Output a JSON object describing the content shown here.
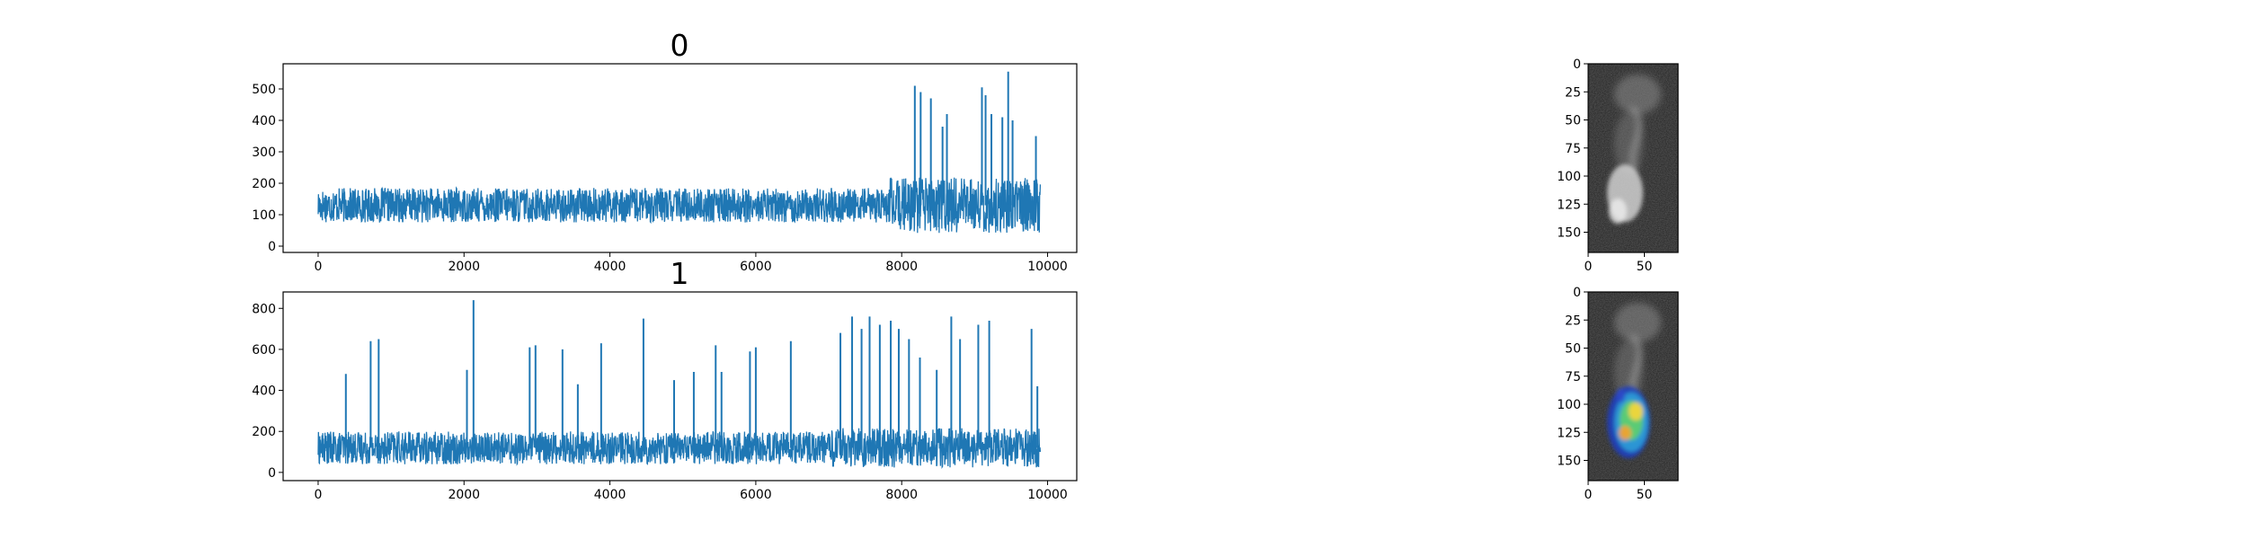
{
  "colors": {
    "line": "#1f77b4",
    "axes": "#000000",
    "background": "#ffffff"
  },
  "chart_data": [
    {
      "type": "line",
      "title": "0",
      "xlabel": "",
      "ylabel": "",
      "xlim": [
        -480,
        10400
      ],
      "ylim": [
        -20,
        580
      ],
      "xticks": [
        0,
        2000,
        4000,
        6000,
        8000,
        10000
      ],
      "yticks": [
        0,
        100,
        200,
        300,
        400,
        500
      ],
      "x_range": [
        0,
        9900
      ],
      "baseline": 130,
      "noise_amplitude": 55,
      "grid": false,
      "spikes": [
        {
          "x": 8180,
          "y": 510
        },
        {
          "x": 8260,
          "y": 490
        },
        {
          "x": 8400,
          "y": 470
        },
        {
          "x": 8560,
          "y": 380
        },
        {
          "x": 8620,
          "y": 420
        },
        {
          "x": 9100,
          "y": 505
        },
        {
          "x": 9150,
          "y": 480
        },
        {
          "x": 9230,
          "y": 420
        },
        {
          "x": 9380,
          "y": 410
        },
        {
          "x": 9460,
          "y": 555
        },
        {
          "x": 9520,
          "y": 400
        },
        {
          "x": 9840,
          "y": 350
        }
      ]
    },
    {
      "type": "line",
      "title": "1",
      "xlabel": "",
      "ylabel": "",
      "xlim": [
        -480,
        10400
      ],
      "ylim": [
        -40,
        880
      ],
      "xticks": [
        0,
        2000,
        4000,
        6000,
        8000,
        10000
      ],
      "yticks": [
        0,
        200,
        400,
        600,
        800
      ],
      "x_range": [
        0,
        9900
      ],
      "baseline": 120,
      "noise_amplitude": 80,
      "grid": false,
      "spikes": [
        {
          "x": 380,
          "y": 480
        },
        {
          "x": 720,
          "y": 640
        },
        {
          "x": 830,
          "y": 650
        },
        {
          "x": 2040,
          "y": 500
        },
        {
          "x": 2130,
          "y": 840
        },
        {
          "x": 2900,
          "y": 610
        },
        {
          "x": 2980,
          "y": 620
        },
        {
          "x": 3350,
          "y": 600
        },
        {
          "x": 3560,
          "y": 430
        },
        {
          "x": 3880,
          "y": 630
        },
        {
          "x": 4460,
          "y": 750
        },
        {
          "x": 4880,
          "y": 450
        },
        {
          "x": 5150,
          "y": 490
        },
        {
          "x": 5450,
          "y": 620
        },
        {
          "x": 5530,
          "y": 490
        },
        {
          "x": 5920,
          "y": 590
        },
        {
          "x": 6000,
          "y": 610
        },
        {
          "x": 6480,
          "y": 640
        },
        {
          "x": 7160,
          "y": 680
        },
        {
          "x": 7320,
          "y": 760
        },
        {
          "x": 7450,
          "y": 700
        },
        {
          "x": 7560,
          "y": 760
        },
        {
          "x": 7700,
          "y": 720
        },
        {
          "x": 7850,
          "y": 740
        },
        {
          "x": 7960,
          "y": 700
        },
        {
          "x": 8100,
          "y": 650
        },
        {
          "x": 8250,
          "y": 560
        },
        {
          "x": 8480,
          "y": 500
        },
        {
          "x": 8680,
          "y": 760
        },
        {
          "x": 8800,
          "y": 650
        },
        {
          "x": 9050,
          "y": 720
        },
        {
          "x": 9200,
          "y": 740
        },
        {
          "x": 9780,
          "y": 700
        },
        {
          "x": 9860,
          "y": 420
        }
      ]
    },
    {
      "type": "heatmap",
      "title": "",
      "xlim": [
        0,
        80
      ],
      "ylim": [
        168,
        0
      ],
      "xticks": [
        0,
        50
      ],
      "yticks": [
        0,
        25,
        50,
        75,
        100,
        125,
        150
      ],
      "colormap": "gray",
      "overlay": false
    },
    {
      "type": "heatmap",
      "title": "",
      "xlim": [
        0,
        80
      ],
      "ylim": [
        168,
        0
      ],
      "xticks": [
        0,
        50
      ],
      "yticks": [
        0,
        25,
        50,
        75,
        100,
        125,
        150
      ],
      "colormap": "gray",
      "overlay": true,
      "overlay_colormap": "jet"
    }
  ]
}
